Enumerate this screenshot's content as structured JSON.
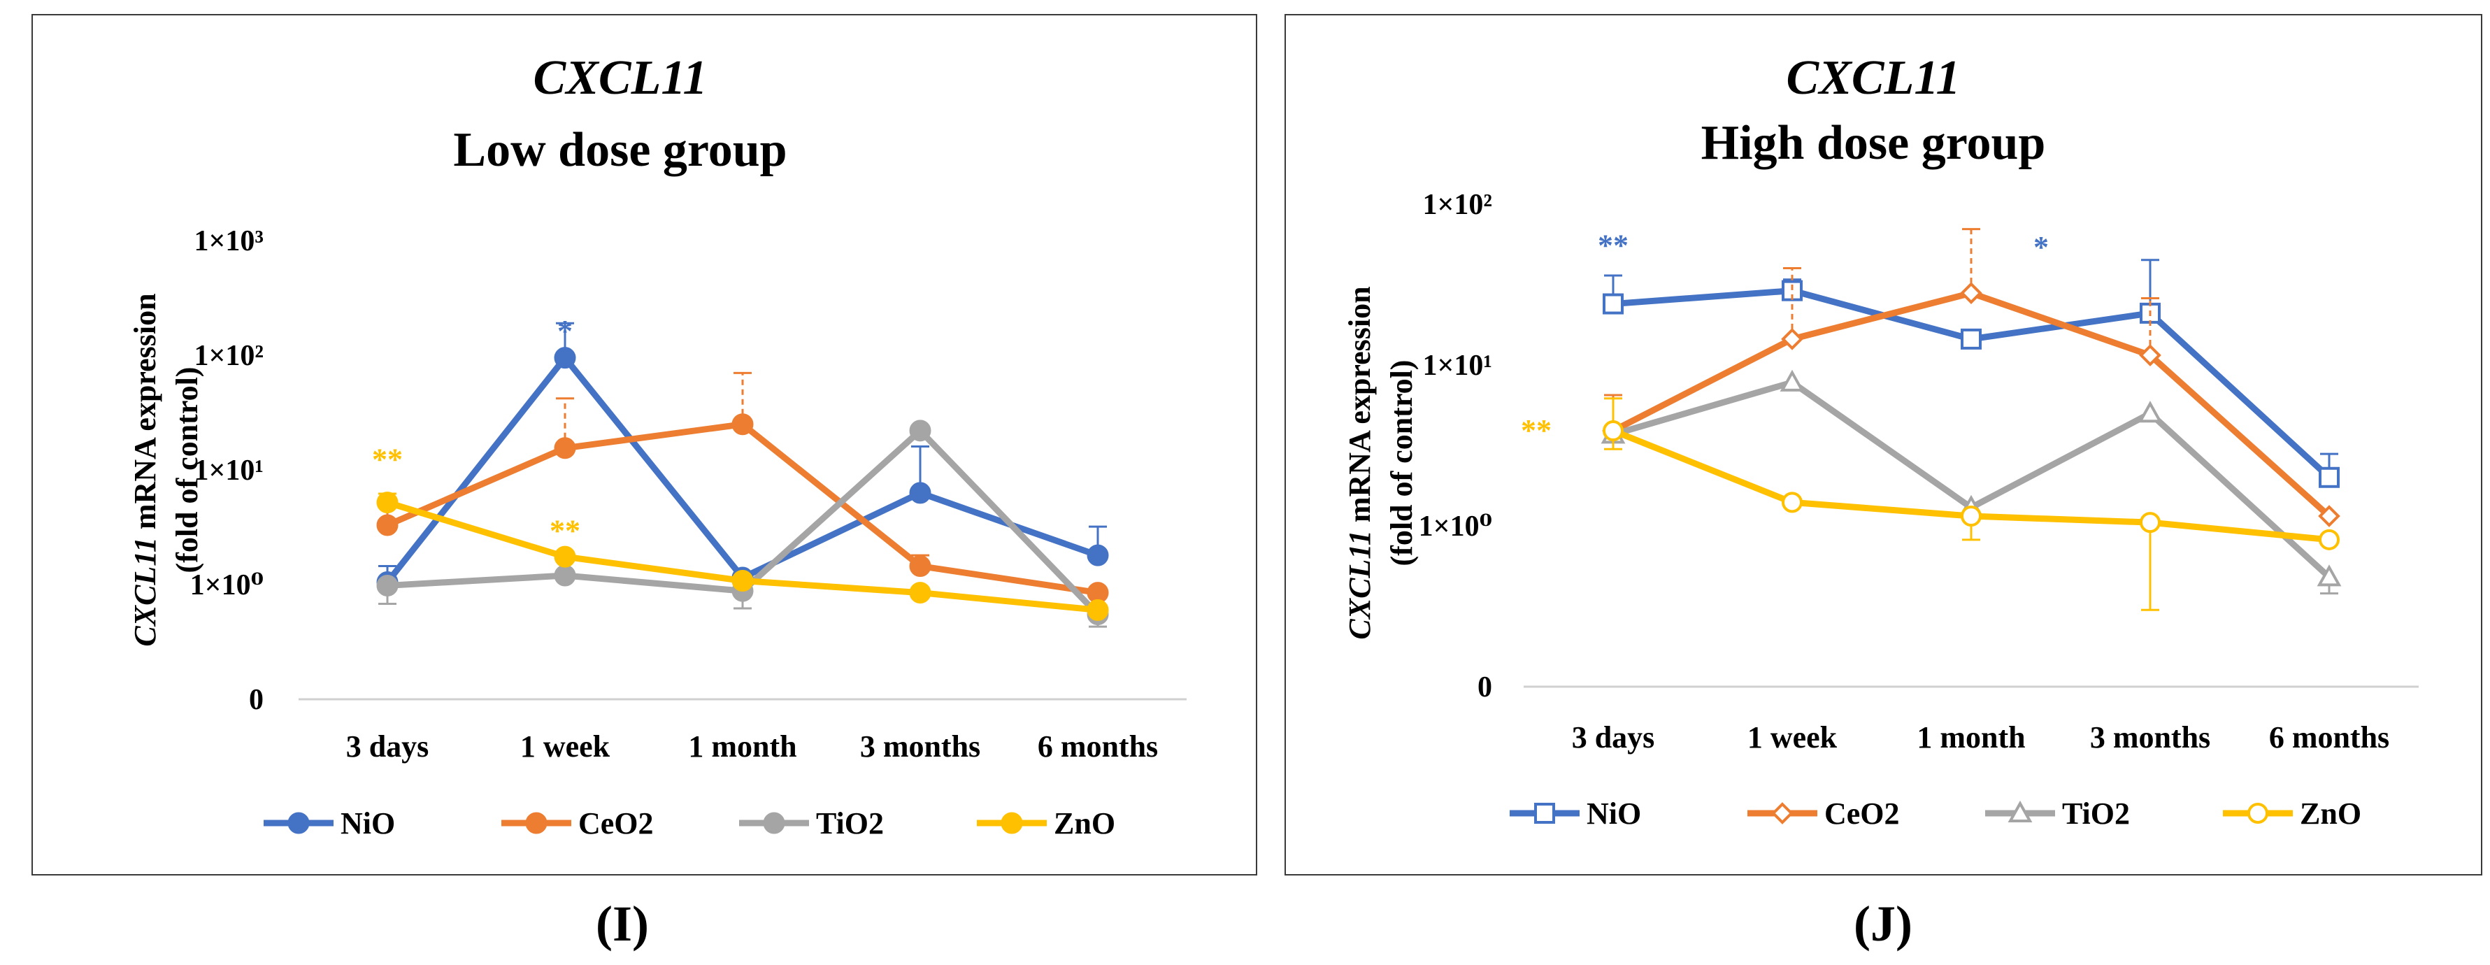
{
  "sub_labels": {
    "left": "(I)",
    "right": "(J)"
  },
  "chart_data": [
    {
      "type": "line",
      "scale": "log",
      "gene": "CXCL11",
      "title": "Low dose group",
      "ylabel_gene": "CXCL11",
      "ylabel_rest": " mRNA expression",
      "ylabel2": "(fold of control)",
      "categories": [
        "3 days",
        "1 week",
        "1 month",
        "3 months",
        "6 months"
      ],
      "ylim_log10": [
        -1.0,
        3.0
      ],
      "y_ticks": [
        {
          "exp": 3,
          "label": "1×10³"
        },
        {
          "exp": 2,
          "label": "1×10²"
        },
        {
          "exp": 1,
          "label": "1×10¹"
        },
        {
          "exp": 0,
          "label": "1×10⁰"
        },
        {
          "exp": -1,
          "label": "0"
        }
      ],
      "markers": "filled",
      "series": [
        {
          "name": "NiO",
          "color": "#4472C4",
          "values": [
            1.05,
            95,
            1.15,
            6.3,
            1.8
          ],
          "error_upper": [
            1.45,
            190,
            null,
            16,
            3.2
          ]
        },
        {
          "name": "CeO2",
          "color": "#ED7D31",
          "values": [
            3.3,
            15.5,
            25,
            1.45,
            0.85
          ],
          "error_upper": [
            5.5,
            42,
            70,
            1.8,
            null
          ]
        },
        {
          "name": "TiO2",
          "color": "#A5A5A5",
          "values": [
            0.98,
            1.2,
            0.88,
            22,
            0.55
          ],
          "error_upper": [
            null,
            null,
            null,
            null,
            null
          ],
          "error_lower": [
            0.68,
            null,
            0.62,
            null,
            0.43
          ]
        },
        {
          "name": "ZnO",
          "color": "#FFC000",
          "values": [
            5.2,
            1.75,
            1.08,
            0.85,
            0.6
          ],
          "error_upper": [
            6.2,
            null,
            null,
            null,
            null
          ]
        }
      ],
      "annotations": [
        {
          "text": "*",
          "category": "1 week",
          "exp": 2.22,
          "color": "#4472C4"
        },
        {
          "text": "**",
          "category": "3 days",
          "exp": 1.1,
          "color": "#FFC000"
        },
        {
          "text": "**",
          "category": "1 week",
          "exp": 0.48,
          "color": "#FFC000"
        }
      ],
      "legend": {
        "position": "bottom"
      }
    },
    {
      "type": "line",
      "scale": "log",
      "gene": "CXCL11",
      "title": "High dose group",
      "ylabel_gene": "CXCL11",
      "ylabel_rest": " mRNA expression",
      "ylabel2": "(fold of control)",
      "categories": [
        "3 days",
        "1 week",
        "1 month",
        "3 months",
        "6 months"
      ],
      "ylim_log10": [
        -1.0,
        2.0
      ],
      "y_ticks": [
        {
          "exp": 2,
          "label": "1×10²"
        },
        {
          "exp": 1,
          "label": "1×10¹"
        },
        {
          "exp": 0,
          "label": "1×10⁰"
        },
        {
          "exp": -1,
          "label": "0"
        }
      ],
      "markers": "hollow",
      "series": [
        {
          "name": "NiO",
          "color": "#4472C4",
          "marker": "square",
          "values": [
            24,
            29,
            14.5,
            21,
            2.0
          ],
          "error_upper": [
            36,
            34,
            null,
            45,
            2.8
          ]
        },
        {
          "name": "CeO2",
          "color": "#ED7D31",
          "marker": "diamond",
          "values": [
            3.9,
            14.5,
            28,
            11.5,
            1.15
          ],
          "error_upper": [
            6.5,
            40,
            70,
            26,
            null
          ]
        },
        {
          "name": "TiO2",
          "color": "#A5A5A5",
          "marker": "triangle",
          "values": [
            3.7,
            7.8,
            1.3,
            5.0,
            0.48
          ],
          "error_upper": [
            null,
            null,
            null,
            null,
            null
          ],
          "error_lower": [
            null,
            null,
            null,
            null,
            0.38
          ]
        },
        {
          "name": "ZnO",
          "color": "#FFC000",
          "marker": "circle",
          "values": [
            3.9,
            1.4,
            1.15,
            1.05,
            0.82
          ],
          "error_upper": [
            6.2,
            null,
            null,
            null,
            null
          ],
          "error_lower": [
            3.0,
            null,
            0.82,
            0.3,
            null
          ]
        }
      ],
      "annotations": [
        {
          "text": "**",
          "category": "3 days",
          "exp": 1.75,
          "color": "#4472C4"
        },
        {
          "text": "*",
          "category": "1 month",
          "exp": 1.74,
          "color": "#4472C4",
          "dx": 100
        },
        {
          "text": "**",
          "category": "3 days",
          "exp": 0.6,
          "color": "#FFC000",
          "dx": -110
        }
      ],
      "legend": {
        "position": "bottom"
      }
    }
  ]
}
